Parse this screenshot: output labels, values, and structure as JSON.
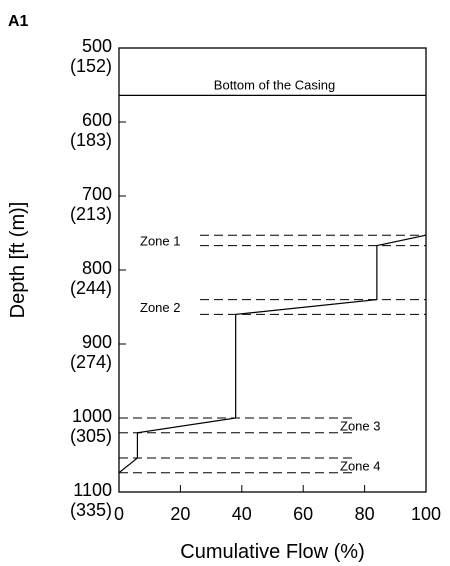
{
  "panel_label": "A1",
  "chart_data": {
    "type": "line",
    "xlabel": "Cumulative Flow (%)",
    "ylabel": "Depth [ft (m)]",
    "xlim": [
      0,
      100
    ],
    "ylim": [
      500,
      1100
    ],
    "x_ticks": [
      {
        "value": 0,
        "label": "0"
      },
      {
        "value": 20,
        "label": "20"
      },
      {
        "value": 40,
        "label": "40"
      },
      {
        "value": 60,
        "label": "60"
      },
      {
        "value": 80,
        "label": "80"
      },
      {
        "value": 100,
        "label": "100"
      }
    ],
    "y_ticks": [
      {
        "value": 500,
        "label": "500",
        "sublabel": "(152)"
      },
      {
        "value": 600,
        "label": "600",
        "sublabel": "(183)"
      },
      {
        "value": 700,
        "label": "700",
        "sublabel": "(213)"
      },
      {
        "value": 800,
        "label": "800",
        "sublabel": "(244)"
      },
      {
        "value": 900,
        "label": "900",
        "sublabel": "(274)"
      },
      {
        "value": 1000,
        "label": "1000",
        "sublabel": "(305)"
      },
      {
        "value": 1100,
        "label": "1100",
        "sublabel": "(335)"
      }
    ],
    "casing": {
      "depth": 564,
      "label": "Bottom of the Casing"
    },
    "zones": [
      {
        "name": "Zone 1",
        "top": 753,
        "bottom": 767
      },
      {
        "name": "Zone 2",
        "top": 840,
        "bottom": 860
      },
      {
        "name": "Zone 3",
        "top": 1000,
        "bottom": 1020
      },
      {
        "name": "Zone 4",
        "top": 1054,
        "bottom": 1074
      }
    ],
    "series": [
      {
        "x": [
          0,
          6,
          6,
          38,
          38,
          84,
          84,
          100
        ],
        "y": [
          1074,
          1054,
          1020,
          1000,
          860,
          840,
          767,
          753
        ]
      }
    ]
  }
}
